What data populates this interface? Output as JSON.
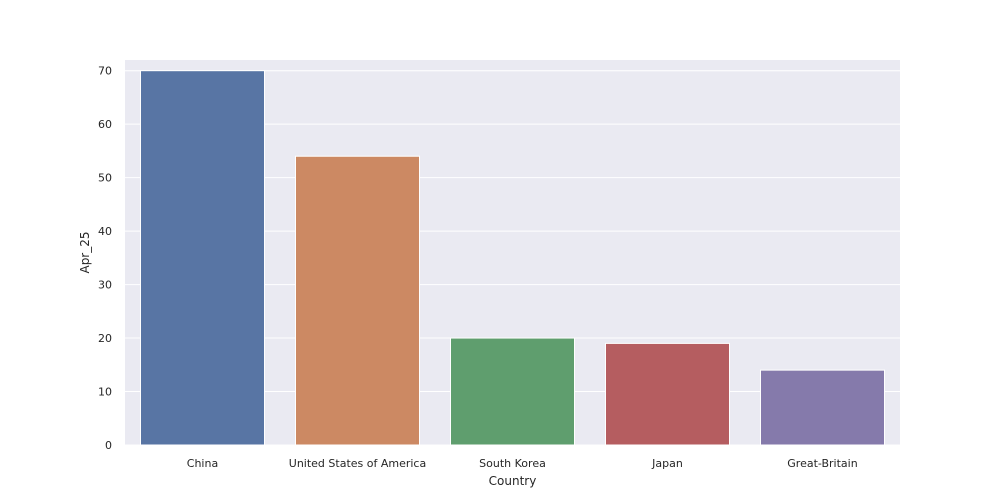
{
  "chart_data": {
    "type": "bar",
    "title": "",
    "xlabel": "Country",
    "ylabel": "Apr_25",
    "categories": [
      "China",
      "United States of America",
      "South Korea",
      "Japan",
      "Great-Britain"
    ],
    "values": [
      70,
      54,
      20,
      19,
      14
    ],
    "colors": [
      "#5875a4",
      "#cc8963",
      "#5f9e6e",
      "#b55d60",
      "#857aab"
    ],
    "yticks": [
      "0",
      "10",
      "20",
      "30",
      "40",
      "50",
      "60",
      "70"
    ],
    "ylim": [
      0,
      72
    ],
    "grid": true,
    "background_color": "#eaeaf2",
    "grid_color": "#ffffff"
  }
}
